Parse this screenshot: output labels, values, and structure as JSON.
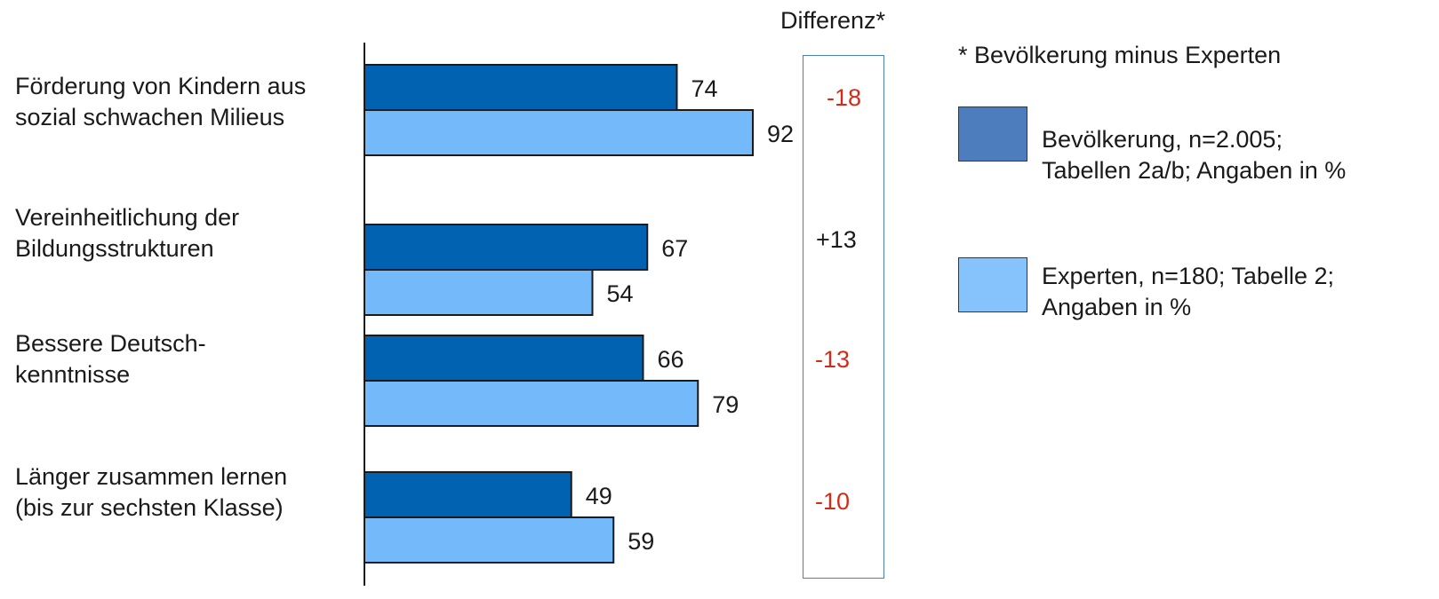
{
  "chart_data": {
    "type": "bar",
    "orientation": "horizontal",
    "categories": [
      [
        "Förderung von Kindern aus",
        "sozial schwachen Milieus"
      ],
      [
        "Vereinheitlichung der",
        "Bildungsstrukturen"
      ],
      [
        "Bessere Deutsch-",
        "kenntnisse"
      ],
      [
        "Länger zusammen lernen",
        "(bis zur sechsten Klasse)"
      ]
    ],
    "series": [
      {
        "name": "Bevölkerung, n=2.005; Tabellen 2a/b; Angaben in %",
        "color": "#0062b1",
        "values": [
          74,
          67,
          66,
          49
        ]
      },
      {
        "name": "Experten, n=180; Tabelle 2; Angaben in %",
        "color": "#74bafa",
        "values": [
          92,
          54,
          79,
          59
        ]
      }
    ],
    "differences": {
      "title": "Differenz*",
      "values": [
        "-18",
        "+13",
        "-13",
        "-10"
      ],
      "colors": [
        "#d42a1a",
        "#1a1a1a",
        "#d42a1a",
        "#d42a1a"
      ]
    },
    "note": "* Bevölkerung minus Experten",
    "legend": {
      "placement": "right",
      "items": [
        {
          "lines": [
            "Bevölkerung, n=2.005;",
            "Tabellen 2a/b; Angaben in %"
          ],
          "color": "#4e7dbe"
        },
        {
          "lines": [
            "Experten, n=180; Tabelle 2;",
            "Angaben in %"
          ],
          "color": "#86c2fb"
        }
      ]
    },
    "xlim": [
      0,
      100
    ]
  }
}
